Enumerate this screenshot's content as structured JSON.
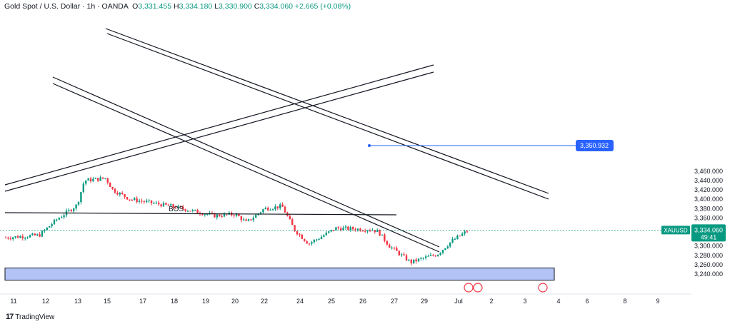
{
  "header": {
    "symbol": "Gold Spot / U.S. Dollar · 1h · OANDA",
    "open_label": "O",
    "open": "3,331.455",
    "high_label": "H",
    "high": "3,334.180",
    "low_label": "L",
    "low": "3,330.900",
    "close_label": "C",
    "close": "3,334.060",
    "change": "+2.665 (+0.08%)"
  },
  "branding": {
    "text": "TradingView"
  },
  "colors": {
    "up": "#089981",
    "down": "#f23645",
    "zone": "#a7b9f5",
    "level": "#2962ff",
    "accent": "#2962ff"
  },
  "chart_data": {
    "type": "candlestick",
    "symbol": "XAUUSD",
    "ylim": [
      3230,
      3470
    ],
    "y_ticks": [
      3240,
      3260,
      3280,
      3300,
      3320,
      3340,
      3360,
      3380,
      3400,
      3420,
      3440,
      3460
    ],
    "y_tick_labels": [
      "3,240.000",
      "3,260.000",
      "3,280.000",
      "3,300.000",
      "3,320.000",
      "3,340.000",
      "3,360.000",
      "3,380.000",
      "3,400.000",
      "3,420.000",
      "3,440.000",
      "3,460.000"
    ],
    "x_tick_labels": [
      "11",
      "12",
      "13",
      "15",
      "17",
      "18",
      "19",
      "20",
      "22",
      "24",
      "25",
      "26",
      "27",
      "29",
      "Jul",
      "2",
      "3",
      "4",
      "6",
      "8",
      "9"
    ],
    "trend": [
      {
        "date": "11",
        "price": 3318
      },
      {
        "date": "12",
        "price": 3323
      },
      {
        "date": "12",
        "price": 3355
      },
      {
        "date": "13",
        "price": 3388
      },
      {
        "date": "13",
        "price": 3440
      },
      {
        "date": "15",
        "price": 3445
      },
      {
        "date": "15",
        "price": 3420
      },
      {
        "date": "17",
        "price": 3400
      },
      {
        "date": "18",
        "price": 3385
      },
      {
        "date": "19",
        "price": 3365
      },
      {
        "date": "20",
        "price": 3368
      },
      {
        "date": "22",
        "price": 3350
      },
      {
        "date": "22",
        "price": 3380
      },
      {
        "date": "23",
        "price": 3385
      },
      {
        "date": "24",
        "price": 3335
      },
      {
        "date": "24",
        "price": 3305
      },
      {
        "date": "25",
        "price": 3320
      },
      {
        "date": "26",
        "price": 3338
      },
      {
        "date": "26",
        "price": 3335
      },
      {
        "date": "27",
        "price": 3330
      },
      {
        "date": "27",
        "price": 3300
      },
      {
        "date": "29",
        "price": 3265
      },
      {
        "date": "29",
        "price": 3275
      },
      {
        "date": "Jul",
        "price": 3282
      },
      {
        "date": "Jul",
        "price": 3310
      },
      {
        "date": "Jul",
        "price": 3334
      }
    ],
    "current_price": {
      "symbol": "XAUUSD",
      "value": 3334.06,
      "label": "3,334.060",
      "countdown": "49:41"
    },
    "horizontal_level": {
      "value": 3350.932,
      "label": "3,350.932"
    },
    "annotations": [
      {
        "type": "text",
        "text": "BOS",
        "value": 3300
      },
      {
        "type": "zone",
        "from": 3230,
        "to": 3253
      }
    ],
    "grid": false,
    "legend": "none"
  }
}
